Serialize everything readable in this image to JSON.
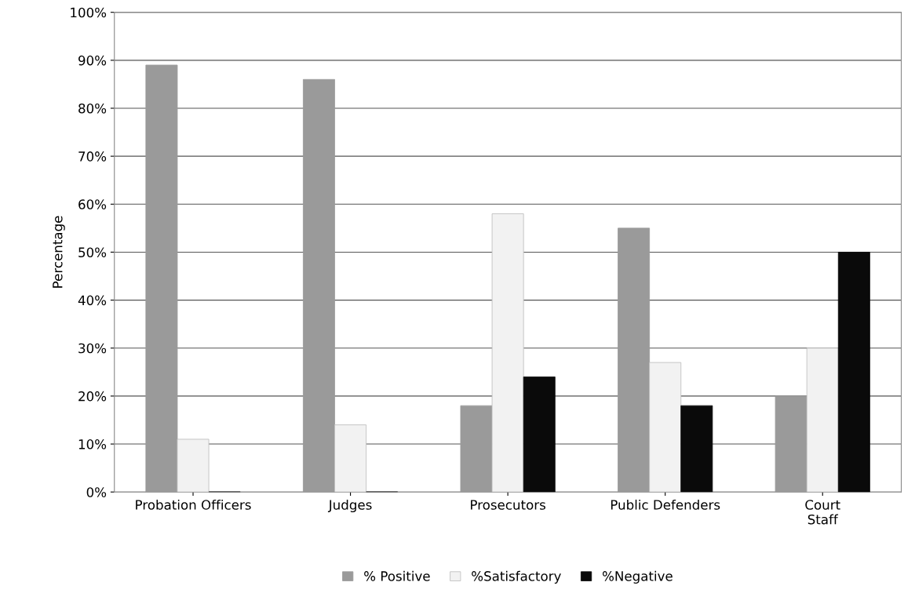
{
  "chart_data": {
    "type": "bar",
    "ylabel": "Percentage",
    "categories": [
      "Probation Officers",
      "Judges",
      "Prosecutors",
      "Public Defenders",
      "Court\nStaff"
    ],
    "series": [
      {
        "name": "% Positive",
        "color": "#9a9a9a",
        "values": [
          89,
          86,
          18,
          55,
          20
        ]
      },
      {
        "name": "%Satisfactory",
        "color": "#f2f2f2",
        "values": [
          11,
          14,
          58,
          27,
          30
        ]
      },
      {
        "name": "%Negative",
        "color": "#0a0a0a",
        "values": [
          0,
          0,
          24,
          18,
          50
        ]
      }
    ],
    "ylim": [
      0,
      100
    ],
    "yticks": [
      {
        "value": 0,
        "label": "0%"
      },
      {
        "value": 10,
        "label": "10%"
      },
      {
        "value": 20,
        "label": "20%"
      },
      {
        "value": 30,
        "label": "30%"
      },
      {
        "value": 40,
        "label": "40%"
      },
      {
        "value": 50,
        "label": "50%"
      },
      {
        "value": 60,
        "label": "60%"
      },
      {
        "value": 70,
        "label": "70%"
      },
      {
        "value": 80,
        "label": "80%"
      },
      {
        "value": 90,
        "label": "90%"
      },
      {
        "value": 100,
        "label": "100%"
      }
    ],
    "grid": "y",
    "legend": "bottom"
  }
}
